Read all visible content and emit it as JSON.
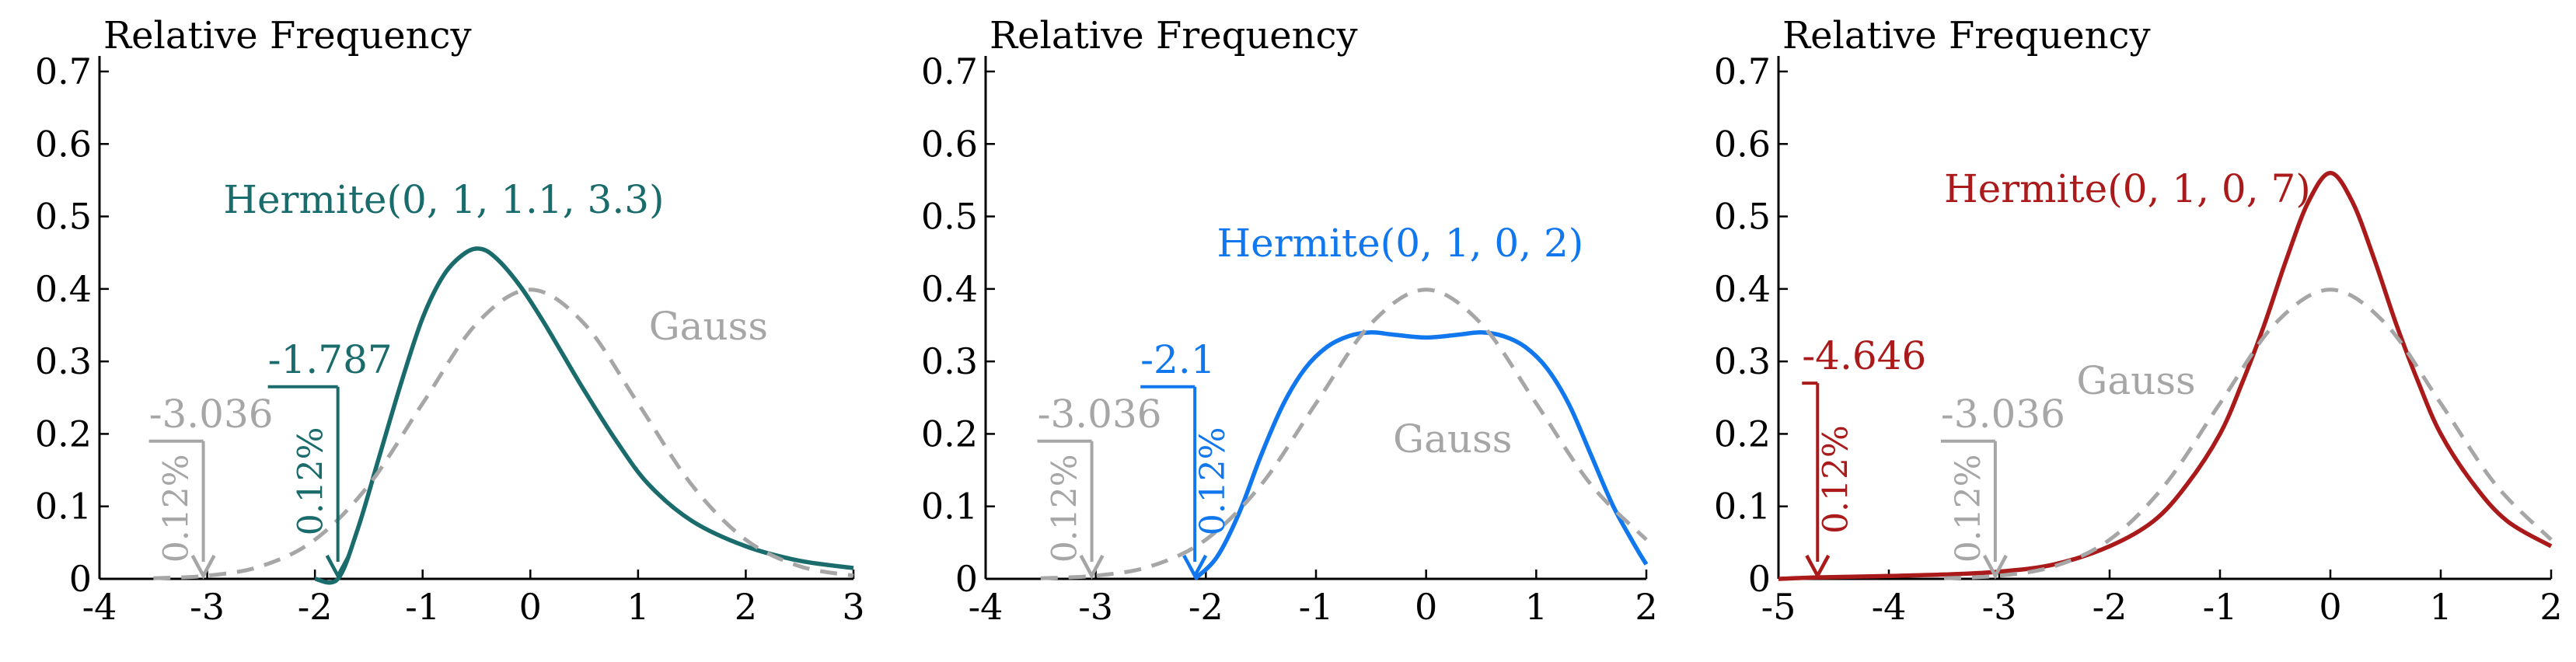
{
  "chart_data": [
    {
      "type": "line",
      "ylabel": "Relative Frequency",
      "xlim": [
        -4,
        3
      ],
      "ylim": [
        0,
        0.7
      ],
      "xticks": [
        -4,
        -3,
        -2,
        -1,
        0,
        1,
        2,
        3
      ],
      "yticks": [
        0,
        0.1,
        0.2,
        0.3,
        0.4,
        0.5,
        0.6,
        0.7
      ],
      "grid": false,
      "series": [
        {
          "name": "Hermite(0, 1, 1.1, 3.3)",
          "style": "solid",
          "color": "#1a6b6b",
          "x": [
            -2.0,
            -1.787,
            -1.6,
            -1.4,
            -1.2,
            -1.0,
            -0.8,
            -0.6,
            -0.45,
            -0.3,
            -0.1,
            0.1,
            0.3,
            0.5,
            0.8,
            1.1,
            1.5,
            2.0,
            2.5,
            3.0
          ],
          "y": [
            0.0,
            0.0,
            0.07,
            0.17,
            0.27,
            0.36,
            0.42,
            0.45,
            0.455,
            0.44,
            0.405,
            0.36,
            0.31,
            0.26,
            0.19,
            0.13,
            0.08,
            0.045,
            0.025,
            0.015
          ]
        },
        {
          "name": "Gauss",
          "style": "dashed",
          "color": "#a6a6a6",
          "x": [
            -3.5,
            -3.0,
            -2.5,
            -2.0,
            -1.5,
            -1.0,
            -0.5,
            0.0,
            0.5,
            1.0,
            1.5,
            2.0,
            2.5,
            3.0
          ],
          "y": [
            0.0009,
            0.0044,
            0.0175,
            0.054,
            0.1295,
            0.242,
            0.352,
            0.399,
            0.352,
            0.242,
            0.1295,
            0.054,
            0.0175,
            0.0044
          ]
        }
      ],
      "annotations": [
        {
          "label": "-3.036",
          "x": -3.036,
          "percent": "0.12%",
          "color": "#a6a6a6"
        },
        {
          "label": "-1.787",
          "x": -1.787,
          "percent": "0.12%",
          "color": "#1a6b6b"
        }
      ]
    },
    {
      "type": "line",
      "ylabel": "Relative Frequency",
      "xlim": [
        -4,
        2
      ],
      "ylim": [
        0,
        0.7
      ],
      "xticks": [
        -4,
        -3,
        -2,
        -1,
        0,
        1,
        2
      ],
      "yticks": [
        0,
        0.1,
        0.2,
        0.3,
        0.4,
        0.5,
        0.6,
        0.7
      ],
      "grid": false,
      "series": [
        {
          "name": "Hermite(0, 1, 0, 2)",
          "style": "solid",
          "color": "#1177ee",
          "x": [
            -2.1,
            -1.9,
            -1.7,
            -1.5,
            -1.3,
            -1.1,
            -0.9,
            -0.7,
            -0.5,
            -0.3,
            0.0,
            0.3,
            0.5,
            0.7,
            0.9,
            1.1,
            1.3,
            1.5,
            1.7,
            1.9,
            2.0
          ],
          "y": [
            0.0,
            0.03,
            0.09,
            0.17,
            0.24,
            0.29,
            0.32,
            0.335,
            0.34,
            0.337,
            0.333,
            0.337,
            0.34,
            0.335,
            0.32,
            0.29,
            0.24,
            0.17,
            0.1,
            0.045,
            0.02
          ]
        },
        {
          "name": "Gauss",
          "style": "dashed",
          "color": "#a6a6a6",
          "x": [
            -3.5,
            -3.0,
            -2.5,
            -2.0,
            -1.5,
            -1.0,
            -0.5,
            0.0,
            0.5,
            1.0,
            1.5,
            2.0
          ],
          "y": [
            0.0009,
            0.0044,
            0.0175,
            0.054,
            0.1295,
            0.242,
            0.352,
            0.399,
            0.352,
            0.242,
            0.1295,
            0.054
          ]
        }
      ],
      "annotations": [
        {
          "label": "-3.036",
          "x": -3.036,
          "percent": "0.12%",
          "color": "#a6a6a6"
        },
        {
          "label": "-2.1",
          "x": -2.1,
          "percent": "0.12%",
          "color": "#1177ee"
        }
      ]
    },
    {
      "type": "line",
      "ylabel": "Relative Frequency",
      "xlim": [
        -5,
        2
      ],
      "ylim": [
        0,
        0.7
      ],
      "xticks": [
        -5,
        -4,
        -3,
        -2,
        -1,
        0,
        1,
        2
      ],
      "yticks": [
        0,
        0.1,
        0.2,
        0.3,
        0.4,
        0.5,
        0.6,
        0.7
      ],
      "grid": false,
      "series": [
        {
          "name": "Hermite(0, 1, 0, 7)",
          "style": "solid",
          "color": "#aa1a1a",
          "x": [
            -5.0,
            -4.646,
            -4.0,
            -3.5,
            -3.0,
            -2.5,
            -2.0,
            -1.6,
            -1.3,
            -1.0,
            -0.8,
            -0.6,
            -0.4,
            -0.2,
            0.0,
            0.2,
            0.4,
            0.6,
            0.8,
            1.0,
            1.3,
            1.6,
            2.0
          ],
          "y": [
            0.0,
            0.002,
            0.004,
            0.006,
            0.01,
            0.02,
            0.045,
            0.08,
            0.13,
            0.2,
            0.27,
            0.35,
            0.44,
            0.52,
            0.56,
            0.52,
            0.44,
            0.35,
            0.27,
            0.2,
            0.13,
            0.08,
            0.045
          ]
        },
        {
          "name": "Gauss",
          "style": "dashed",
          "color": "#a6a6a6",
          "x": [
            -3.5,
            -3.0,
            -2.5,
            -2.0,
            -1.5,
            -1.0,
            -0.5,
            0.0,
            0.5,
            1.0,
            1.5,
            2.0
          ],
          "y": [
            0.0009,
            0.0044,
            0.0175,
            0.054,
            0.1295,
            0.242,
            0.352,
            0.399,
            0.352,
            0.242,
            0.1295,
            0.054
          ]
        }
      ],
      "annotations": [
        {
          "label": "-4.646",
          "x": -4.646,
          "percent": "0.12%",
          "color": "#aa1a1a"
        },
        {
          "label": "-3.036",
          "x": -3.036,
          "percent": "0.12%",
          "color": "#a6a6a6"
        }
      ]
    }
  ]
}
